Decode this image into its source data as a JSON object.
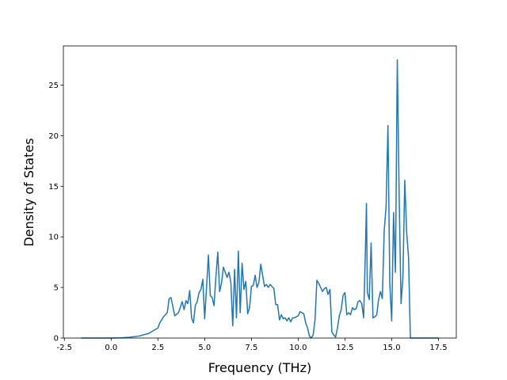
{
  "chart_data": {
    "type": "line",
    "xlabel": "Frequency (THz)",
    "ylabel": "Density of States",
    "series": [
      {
        "color": "#1f77b4",
        "x": [
          -1.6,
          0,
          0.5,
          1.0,
          1.5,
          2.0,
          2.5,
          2.6,
          2.8,
          3.0,
          3.1,
          3.2,
          3.4,
          3.6,
          3.8,
          3.9,
          4.0,
          4.1,
          4.2,
          4.3,
          4.4,
          4.5,
          4.6,
          4.7,
          4.8,
          4.9,
          5.0,
          5.1,
          5.2,
          5.3,
          5.4,
          5.5,
          5.6,
          5.7,
          5.8,
          5.9,
          6.0,
          6.1,
          6.2,
          6.3,
          6.4,
          6.5,
          6.6,
          6.7,
          6.8,
          6.9,
          7.0,
          7.1,
          7.2,
          7.3,
          7.4,
          7.5,
          7.6,
          7.7,
          7.8,
          7.9,
          8.0,
          8.1,
          8.2,
          8.3,
          8.4,
          8.5,
          8.6,
          8.7,
          8.8,
          8.9,
          9.0,
          9.1,
          9.2,
          9.3,
          9.4,
          9.5,
          9.6,
          9.7,
          9.8,
          9.9,
          10.0,
          10.1,
          10.2,
          10.3,
          10.4,
          10.5,
          10.6,
          10.7,
          10.8,
          10.9,
          11.0,
          11.1,
          11.2,
          11.3,
          11.4,
          11.5,
          11.6,
          11.7,
          11.8,
          11.9,
          12.0,
          12.1,
          12.2,
          12.3,
          12.4,
          12.5,
          12.6,
          12.7,
          12.8,
          12.9,
          13.0,
          13.1,
          13.2,
          13.3,
          13.4,
          13.5,
          13.6,
          13.65,
          13.7,
          13.8,
          13.9,
          14.0,
          14.1,
          14.2,
          14.3,
          14.4,
          14.5,
          14.6,
          14.7,
          14.8,
          14.9,
          15.0,
          15.1,
          15.2,
          15.3,
          15.4,
          15.5,
          15.6,
          15.7,
          15.8,
          15.9,
          16.0,
          17.5
        ],
        "values": [
          0,
          0,
          0.02,
          0.08,
          0.2,
          0.45,
          1.0,
          1.5,
          2.1,
          2.5,
          3.9,
          4.0,
          2.2,
          2.5,
          3.6,
          2.8,
          3.7,
          3.4,
          4.7,
          2.0,
          1.5,
          3.2,
          3.6,
          4.5,
          4.8,
          5.8,
          1.9,
          5.0,
          8.2,
          4.2,
          4.0,
          3.2,
          6.0,
          8.5,
          4.6,
          5.4,
          7.0,
          6.5,
          6.0,
          6.5,
          5.5,
          1.2,
          6.8,
          2.0,
          8.6,
          2.5,
          7.4,
          4.8,
          5.6,
          2.4,
          3.0,
          5.1,
          5.2,
          6.2,
          5.0,
          5.5,
          7.3,
          6.2,
          5.1,
          5.3,
          5.0,
          5.3,
          5.1,
          4.9,
          3.3,
          3.3,
          1.8,
          2.3,
          1.9,
          2.0,
          1.7,
          2.0,
          1.6,
          2.0,
          2.0,
          2.1,
          2.2,
          2.6,
          2.5,
          2.4,
          1.5,
          1.0,
          0.2,
          0,
          0.3,
          1.8,
          5.7,
          5.4,
          5.0,
          4.6,
          4.9,
          5.0,
          4.3,
          4.8,
          0.6,
          0.3,
          0.1,
          1.0,
          2.2,
          2.8,
          4.2,
          4.5,
          2.3,
          2.5,
          2.3,
          3.0,
          2.8,
          2.9,
          3.6,
          3.7,
          3.4,
          2.0,
          9.0,
          13.3,
          4.5,
          3.8,
          9.4,
          2.0,
          2.1,
          2.3,
          3.8,
          4.6,
          3.9,
          10.6,
          13.0,
          21.0,
          5.3,
          1.7,
          12.4,
          6.5,
          27.5,
          14.0,
          3.4,
          6.0,
          15.6,
          10.5,
          8.0,
          0,
          0
        ]
      }
    ],
    "xlim": [
      -2.555,
      18.455
    ],
    "ylim": [
      0,
      28.875
    ],
    "xticks": [
      -2.5,
      {
        "value": 0,
        "label": "0.0"
      },
      2.5,
      {
        "value": 5,
        "label": "5.0"
      },
      7.5,
      {
        "value": 10,
        "label": "10.0"
      },
      12.5,
      {
        "value": 15,
        "label": "15.0"
      },
      17.5
    ],
    "yticks": [
      0,
      5,
      10,
      15,
      20,
      25
    ]
  }
}
